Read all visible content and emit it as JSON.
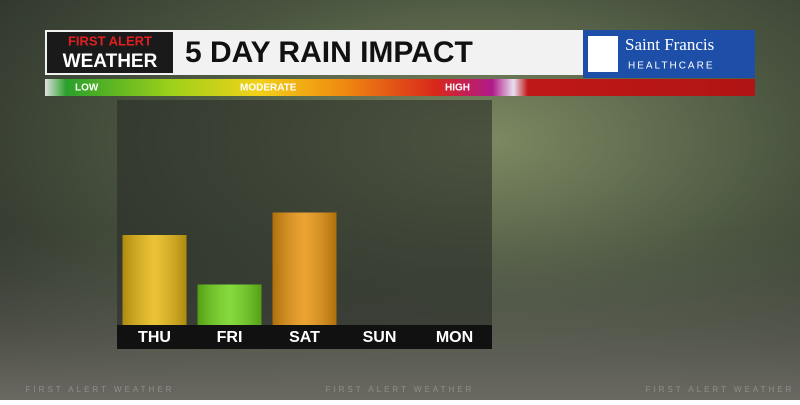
{
  "branding": {
    "logo_top": "FIRST ALERT",
    "logo_bottom": "WEATHER",
    "sponsor_name": "Saint Francis",
    "sponsor_sub": "HEALTHCARE",
    "watermark": "FIRST ALERT WEATHER"
  },
  "scale": {
    "labels": [
      "LOW",
      "MODERATE",
      "HIGH"
    ]
  },
  "chart_data": {
    "type": "bar",
    "title": "5 DAY RAIN IMPACT",
    "categories": [
      "THU",
      "FRI",
      "SAT",
      "SUN",
      "MON"
    ],
    "values": [
      40,
      18,
      50,
      0,
      0
    ],
    "colors": [
      "#e8b812",
      "#6fd41a",
      "#e8940e",
      "#888888",
      "#888888"
    ],
    "ylim": [
      0,
      100
    ]
  }
}
